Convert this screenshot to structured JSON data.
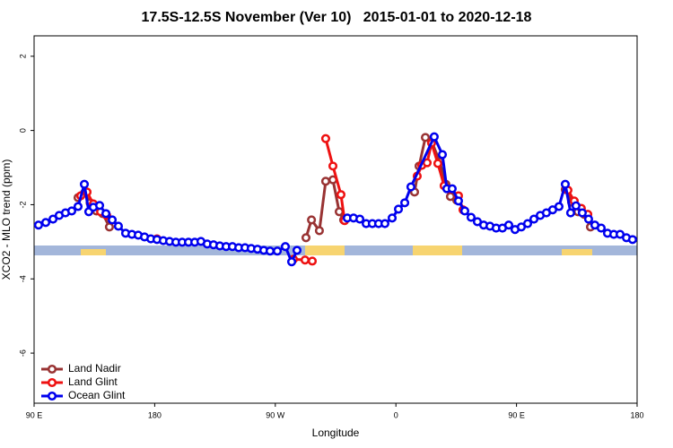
{
  "chart_data": {
    "type": "line",
    "title": "17.5S-12.5S November (Ver 10)   2015-01-01 to 2020-12-18",
    "xlabel": "Longitude",
    "ylabel": "XCO2 - MLO trend (ppm)",
    "xlim": [
      90,
      540
    ],
    "ylim": [
      -7.35,
      2.55
    ],
    "xticks": [
      {
        "value": 90,
        "label": "90 E"
      },
      180,
      {
        "value": 270,
        "label": "90 W"
      },
      {
        "value": 360,
        "label": "0"
      },
      {
        "value": 450,
        "label": "90 E"
      },
      {
        "value": 540,
        "label": "180"
      }
    ],
    "yticks": [
      -6,
      -4,
      -2,
      0,
      2
    ],
    "legend": "bottom-left",
    "series": [
      {
        "name": "Land Nadir",
        "color": "#993333",
        "x": [
          122.8,
          127.5,
          131.8,
          136.5,
          141.2,
          146.2,
          null,
          292.9,
          297,
          302.9,
          307.6,
          313,
          317.7,
          321,
          null,
          373.9,
          377.3,
          382,
          386.6,
          392.7,
          397.3,
          400.7,
          405.4,
          null,
          486.4,
          491.1,
          495.8,
          500.5,
          505.2
        ],
        "values": [
          -1.81,
          -1.69,
          -1.95,
          -2.17,
          -2.24,
          -2.6,
          null,
          -2.89,
          -2.41,
          -2.7,
          -1.37,
          -1.33,
          -2.19,
          -2.41,
          null,
          -1.66,
          -0.96,
          -0.19,
          -0.29,
          -0.84,
          -1.45,
          -1.78,
          -1.88,
          null,
          -1.59,
          -1.93,
          -2.19,
          -2.26,
          -2.6
        ]
      },
      {
        "name": "Land Glint",
        "color": "#ee1111",
        "x": [
          124.8,
          129.5,
          134.2,
          139.6,
          144.2,
          null,
          181.7,
          null,
          283.5,
          292.2,
          297.6,
          null,
          307.6,
          313,
          319,
          321.7,
          null,
          375.9,
          379.3,
          383.3,
          386.6,
          391.3,
          396,
          400.7,
          406.7,
          410.1,
          null,
          488.4,
          493.1,
          498.4,
          503.2
        ],
        "values": [
          -1.76,
          -1.66,
          -1.98,
          -2.19,
          -2.29,
          null,
          -2.92,
          null,
          -3.47,
          -3.49,
          -3.52,
          null,
          -0.22,
          -0.96,
          -1.73,
          -2.43,
          null,
          -1.23,
          -0.94,
          -0.87,
          -0.34,
          -0.89,
          -1.49,
          -1.59,
          -1.76,
          -2.14,
          null,
          -1.61,
          -1.9,
          -2.1,
          -2.26
        ]
      },
      {
        "name": "Ocean Glint",
        "color": "#0000ee",
        "x": [
          93.3,
          98.7,
          104.1,
          108.7,
          113.4,
          118.1,
          122.8,
          127.5,
          130.8,
          134.2,
          138.9,
          143.6,
          148.3,
          152.9,
          158.3,
          163,
          167.7,
          172.4,
          177.1,
          181.7,
          186.4,
          191.1,
          195.8,
          200.5,
          205.2,
          209.9,
          214.5,
          219.2,
          223.9,
          228.6,
          233.3,
          238,
          242.7,
          247.4,
          252,
          256.7,
          261.4,
          266.1,
          271.5,
          277.5,
          282.2,
          286.2,
          null,
          323.7,
          328.4,
          333.1,
          337.8,
          342.4,
          347.1,
          351.8,
          357.2,
          361.9,
          366.6,
          371.2,
          388.6,
          394.7,
          398,
          402,
          406.7,
          411.4,
          416.1,
          420.8,
          425.5,
          430.2,
          434.8,
          439.5,
          444.2,
          448.9,
          453.6,
          458.3,
          463,
          467.7,
          472.3,
          477,
          481.7,
          486.4,
          490.4,
          494.4,
          499.1,
          503.8,
          508.5,
          513.2,
          517.9,
          522.6,
          527.3,
          532,
          536.6
        ],
        "values": [
          -2.55,
          -2.48,
          -2.39,
          -2.29,
          -2.22,
          -2.17,
          -2.05,
          -1.45,
          -2.19,
          -2.07,
          -2.02,
          -2.24,
          -2.41,
          -2.58,
          -2.77,
          -2.8,
          -2.82,
          -2.87,
          -2.92,
          -2.94,
          -2.97,
          -2.99,
          -3.01,
          -3.01,
          -3.01,
          -3.01,
          -2.99,
          -3.06,
          -3.08,
          -3.11,
          -3.13,
          -3.13,
          -3.16,
          -3.16,
          -3.18,
          -3.2,
          -3.23,
          -3.25,
          -3.25,
          -3.13,
          -3.54,
          -3.23,
          null,
          -2.36,
          -2.36,
          -2.39,
          -2.51,
          -2.51,
          -2.51,
          -2.51,
          -2.36,
          -2.12,
          -1.95,
          -1.52,
          -0.17,
          -0.65,
          -1.57,
          -1.57,
          -1.9,
          -2.17,
          -2.34,
          -2.46,
          -2.55,
          -2.58,
          -2.63,
          -2.63,
          -2.55,
          -2.67,
          -2.6,
          -2.51,
          -2.39,
          -2.29,
          -2.22,
          -2.14,
          -2.05,
          -1.45,
          -2.22,
          -2.03,
          -2.22,
          -2.39,
          -2.55,
          -2.63,
          -2.77,
          -2.8,
          -2.8,
          -2.89,
          -2.94
        ]
      }
    ]
  }
}
